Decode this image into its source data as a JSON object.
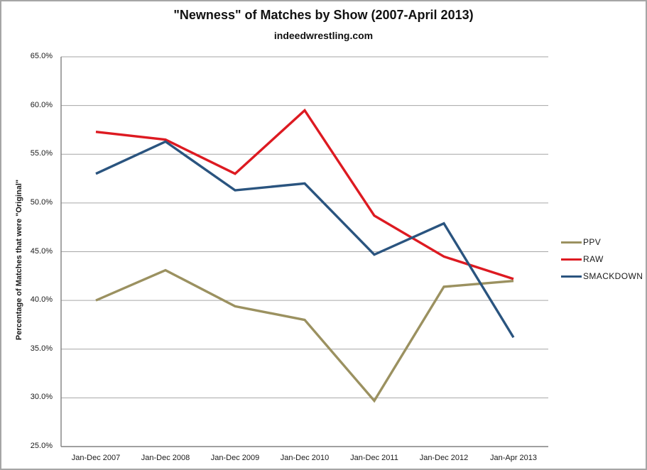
{
  "chart_data": {
    "type": "line",
    "title": "\"Newness\" of Matches by Show (2007-April 2013)",
    "subtitle": "indeedwrestling.com",
    "ylabel": "Percentage of Matches that were \"Original\"",
    "xlabel": "",
    "categories": [
      "Jan-Dec 2007",
      "Jan-Dec 2008",
      "Jan-Dec 2009",
      "Jan-Dec 2010",
      "Jan-Dec 2011",
      "Jan-Dec 2012",
      "Jan-Apr 2013"
    ],
    "series": [
      {
        "name": "PPV",
        "color": "#9B9160",
        "values": [
          40.0,
          43.1,
          39.4,
          38.0,
          29.7,
          41.4,
          42.0
        ]
      },
      {
        "name": "RAW",
        "color": "#DD1A21",
        "values": [
          57.3,
          56.5,
          53.0,
          59.5,
          48.7,
          44.5,
          42.2
        ]
      },
      {
        "name": "SMACKDOWN",
        "color": "#2A547F",
        "values": [
          53.0,
          56.3,
          51.3,
          52.0,
          44.7,
          47.9,
          36.2
        ]
      }
    ],
    "ylim": [
      25,
      65
    ],
    "ytick_step": 5,
    "ytick_suffix": "%",
    "grid": "horizontal",
    "legend_position": "right",
    "grid_color": "#A6A6A6",
    "axis_color": "#808080",
    "text_color": "#1a1a1a"
  }
}
